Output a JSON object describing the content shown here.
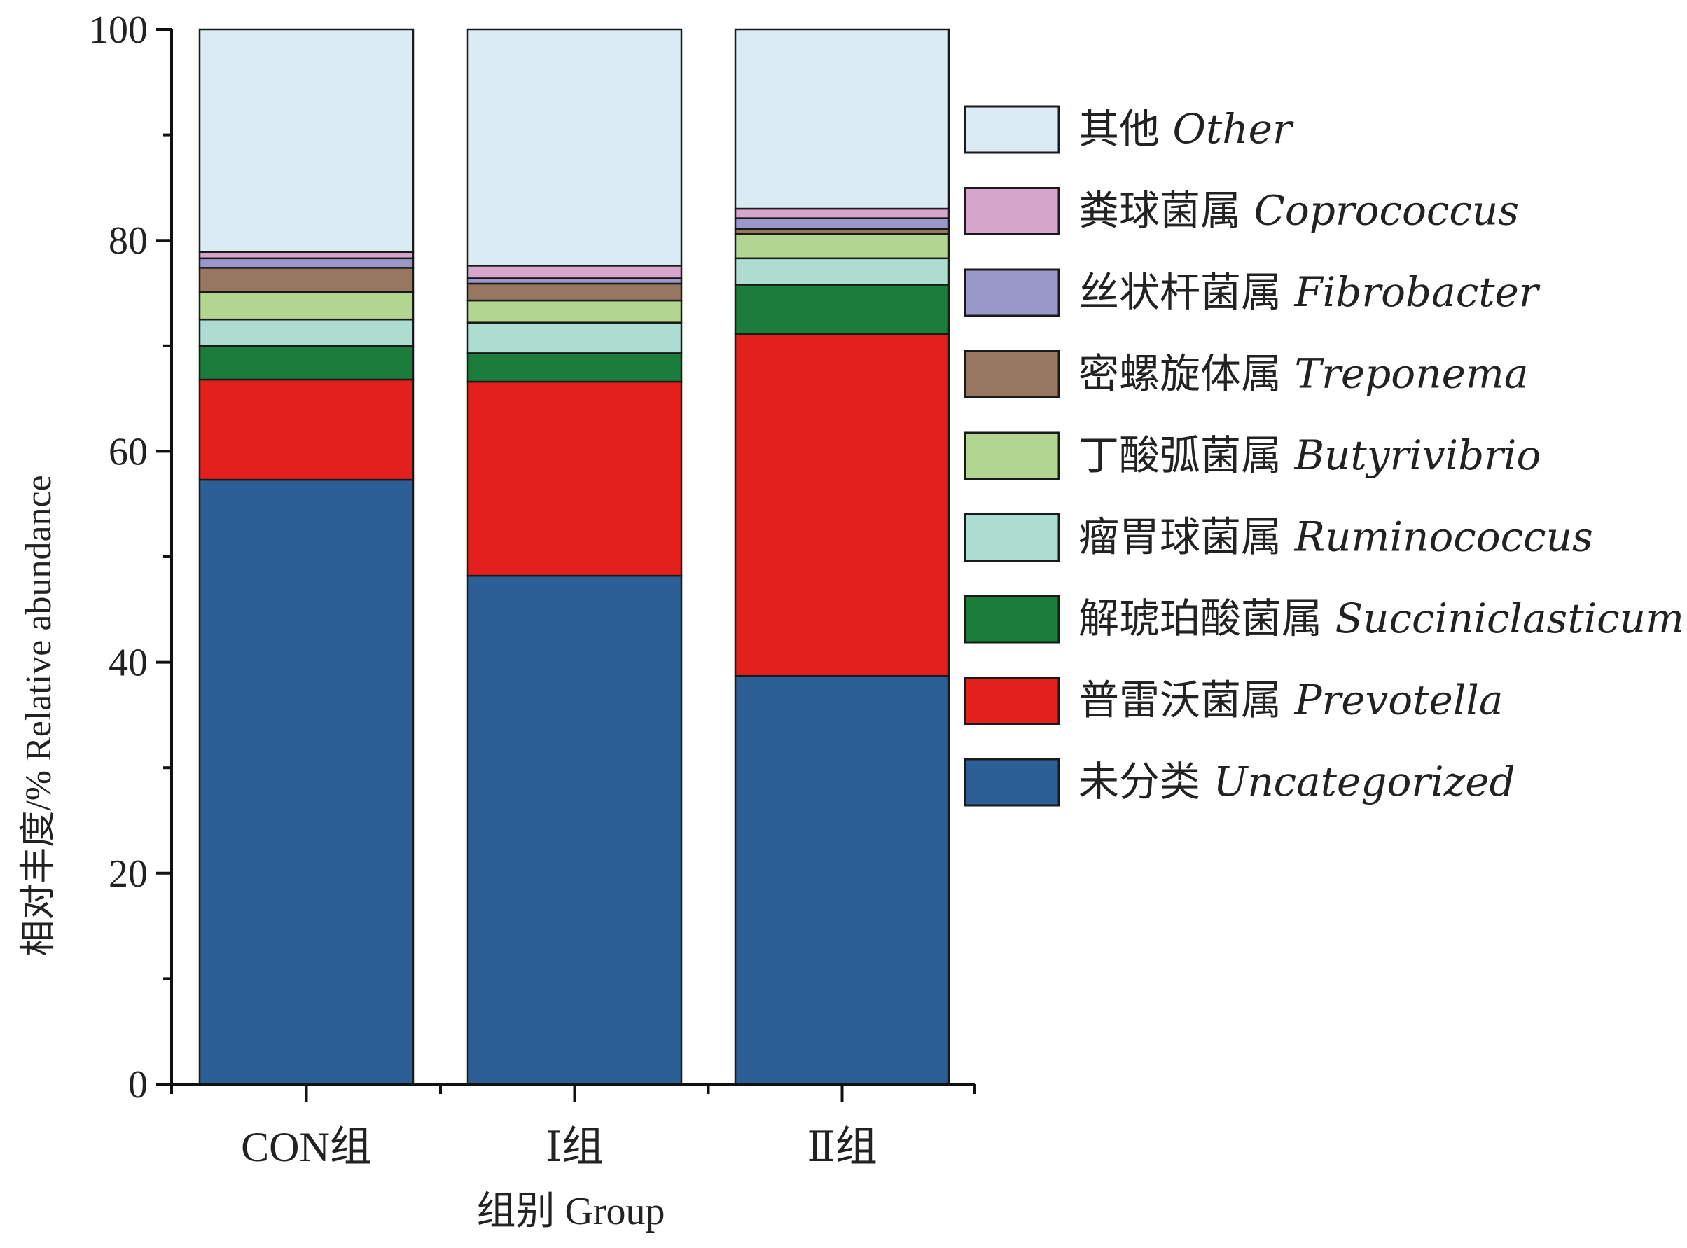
{
  "chart_data": {
    "type": "bar",
    "stacked": true,
    "categories": [
      "CON组",
      "Ⅰ组",
      "Ⅱ组"
    ],
    "ylabel": "相对丰度/% Relative abundance",
    "xlabel": "组别 Group",
    "ylim": [
      0,
      100
    ],
    "yticks": [
      0,
      20,
      40,
      60,
      80,
      100
    ],
    "grid": false,
    "legend_position": "right",
    "series": [
      {
        "name": "未分类",
        "name_latin": "Uncategorized",
        "color": "#2b5f96",
        "values": [
          57.3,
          48.2,
          38.7
        ]
      },
      {
        "name": "普雷沃菌属",
        "name_latin": "Prevotella",
        "color": "#e4201c",
        "values": [
          9.5,
          18.4,
          32.4
        ]
      },
      {
        "name": "解琥珀酸菌属",
        "name_latin": "Succiniclasticum",
        "color": "#1b7d3b",
        "values": [
          3.2,
          2.7,
          4.7
        ]
      },
      {
        "name": "瘤胃球菌属",
        "name_latin": "Ruminococcus",
        "color": "#acddd0",
        "values": [
          2.5,
          2.9,
          2.5
        ]
      },
      {
        "name": "丁酸弧菌属",
        "name_latin": "Butyrivibrio",
        "color": "#b2d692",
        "values": [
          2.6,
          2.1,
          2.3
        ]
      },
      {
        "name": "密螺旋体属",
        "name_latin": "Treponema",
        "color": "#977760",
        "values": [
          2.3,
          1.6,
          0.5
        ]
      },
      {
        "name": "丝状杆菌属",
        "name_latin": "Fibrobacter",
        "color": "#9a97c9",
        "values": [
          0.9,
          0.5,
          1.0
        ]
      },
      {
        "name": "粪球菌属",
        "name_latin": "Coprococcus",
        "color": "#d6a5cb",
        "values": [
          0.6,
          1.2,
          0.9
        ]
      },
      {
        "name": "其他",
        "name_latin": "Other",
        "color": "#daebf3",
        "values": [
          21.1,
          22.4,
          17.0
        ]
      }
    ]
  }
}
